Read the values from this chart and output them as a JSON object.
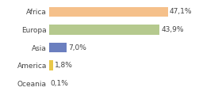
{
  "categories": [
    "Africa",
    "Europa",
    "Asia",
    "America",
    "Oceania"
  ],
  "values": [
    47.1,
    43.9,
    7.0,
    1.8,
    0.1
  ],
  "labels": [
    "47,1%",
    "43,9%",
    "7,0%",
    "1,8%",
    "0,1%"
  ],
  "bar_colors": [
    "#f5c08a",
    "#b5c98e",
    "#6b7fbf",
    "#e8c84a",
    "#f5c08a"
  ],
  "background_color": "#ffffff",
  "xlim": [
    0,
    58
  ],
  "bar_height": 0.55,
  "label_fontsize": 6.5,
  "tick_fontsize": 6.5
}
